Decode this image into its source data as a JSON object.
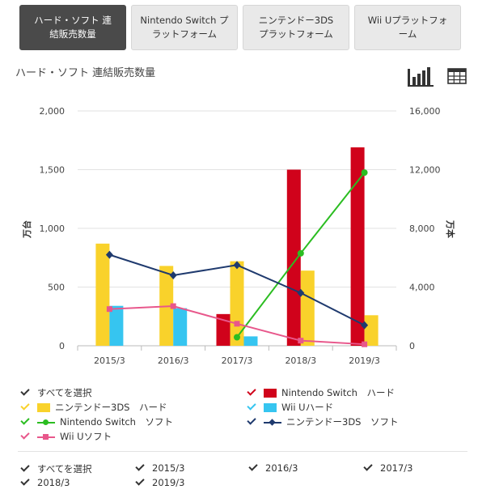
{
  "tabs": [
    {
      "label": "ハード・ソフト 連\n結販売数量",
      "active": true
    },
    {
      "label": "Nintendo Switch プ\nラットフォーム",
      "active": false
    },
    {
      "label": "ニンテンドー3DS\nプラットフォーム",
      "active": false
    },
    {
      "label": "Wii Uプラットフォ\nーム",
      "active": false
    }
  ],
  "chart_title": "ハード・ソフト 連結販売数量",
  "view_icons": {
    "chart": "bar-chart-icon",
    "table": "table-icon"
  },
  "chart_data": {
    "type": "bar",
    "categories": [
      "2015/3",
      "2016/3",
      "2017/3",
      "2018/3",
      "2019/3"
    ],
    "ylabel_left": "万台",
    "ylabel_right": "万本",
    "ylim_left": [
      0,
      2000
    ],
    "ylim_right": [
      0,
      16000
    ],
    "yticks_left": [
      "0",
      "500",
      "1,000",
      "1,500",
      "2,000"
    ],
    "yticks_right": [
      "0",
      "4,000",
      "8,000",
      "12,000",
      "16,000"
    ],
    "bar_series": [
      {
        "name": "Nintendo Switch　ハード",
        "color": "#d0021b",
        "values": [
          null,
          null,
          270,
          1500,
          1690
        ]
      },
      {
        "name": "ニンテンドー3DS　ハード",
        "color": "#f9d22b",
        "values": [
          870,
          680,
          720,
          640,
          260
        ]
      },
      {
        "name": "Wii Uハード",
        "color": "#36c5f0",
        "values": [
          340,
          320,
          80,
          null,
          null
        ]
      }
    ],
    "line_series": [
      {
        "name": "Nintendo Switch　ソフト",
        "color": "#2bbd21",
        "marker": "circle",
        "values": [
          null,
          null,
          580,
          6300,
          11800
        ]
      },
      {
        "name": "ニンテンドー3DS　ソフト",
        "color": "#1f3a6e",
        "marker": "diamond",
        "values": [
          6200,
          4800,
          5500,
          3600,
          1400
        ]
      },
      {
        "name": "Wii Uソフト",
        "color": "#e8578b",
        "marker": "square",
        "values": [
          2500,
          2700,
          1500,
          350,
          100
        ]
      }
    ],
    "grid": true
  },
  "legend": {
    "select_all": "すべてを選択",
    "items": [
      {
        "label": "Nintendo Switch　ハード",
        "color": "#d0021b",
        "kind": "box"
      },
      {
        "label": "ニンテンドー3DS　ハード",
        "color": "#f9d22b",
        "kind": "box"
      },
      {
        "label": "Wii Uハード",
        "color": "#36c5f0",
        "kind": "box"
      },
      {
        "label": "Nintendo Switch　ソフト",
        "color": "#2bbd21",
        "kind": "line"
      },
      {
        "label": "ニンテンドー3DS　ソフト",
        "color": "#1f3a6e",
        "kind": "line"
      },
      {
        "label": "Wii Uソフト",
        "color": "#e8578b",
        "kind": "line"
      }
    ]
  },
  "year_filter": {
    "select_all": "すべてを選択",
    "years": [
      "2015/3",
      "2016/3",
      "2017/3",
      "2018/3",
      "2019/3"
    ]
  }
}
